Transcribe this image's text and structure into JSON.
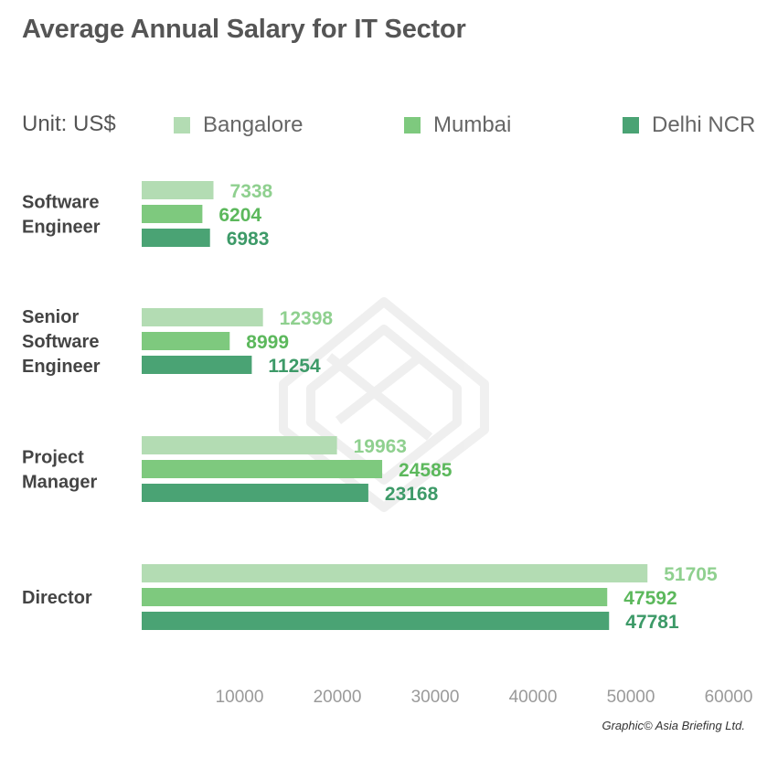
{
  "title": "Average Annual Salary for IT Sector",
  "unit": "Unit: US$",
  "credit": "Graphic© Asia Briefing Ltd.",
  "colors": {
    "Bangalore": "#b3dcb3",
    "Mumbai": "#7ec97e",
    "Delhi NCR": "#4aa374",
    "label_light": "#8fd08f",
    "label_mid": "#5cb85c",
    "label_dark": "#3d9a68",
    "axis_text": "#9a9a9a",
    "category_text": "#444444"
  },
  "chart_data": {
    "type": "bar",
    "orientation": "horizontal",
    "title": "Average Annual Salary for IT Sector",
    "categories": [
      [
        "Software",
        "Engineer"
      ],
      [
        "Senior",
        "Software",
        "Engineer"
      ],
      [
        "Project",
        "Manager"
      ],
      [
        "Director"
      ]
    ],
    "series": [
      {
        "name": "Bangalore",
        "values": [
          7338,
          12398,
          19963,
          51705
        ]
      },
      {
        "name": "Mumbai",
        "values": [
          6204,
          8999,
          24585,
          47592
        ]
      },
      {
        "name": "Delhi NCR",
        "values": [
          6983,
          11254,
          23168,
          47781
        ]
      }
    ],
    "xticks": [
      10000,
      20000,
      30000,
      40000,
      50000,
      60000
    ],
    "xlim": [
      0,
      60000
    ],
    "legend_position": "top",
    "grid": false
  }
}
